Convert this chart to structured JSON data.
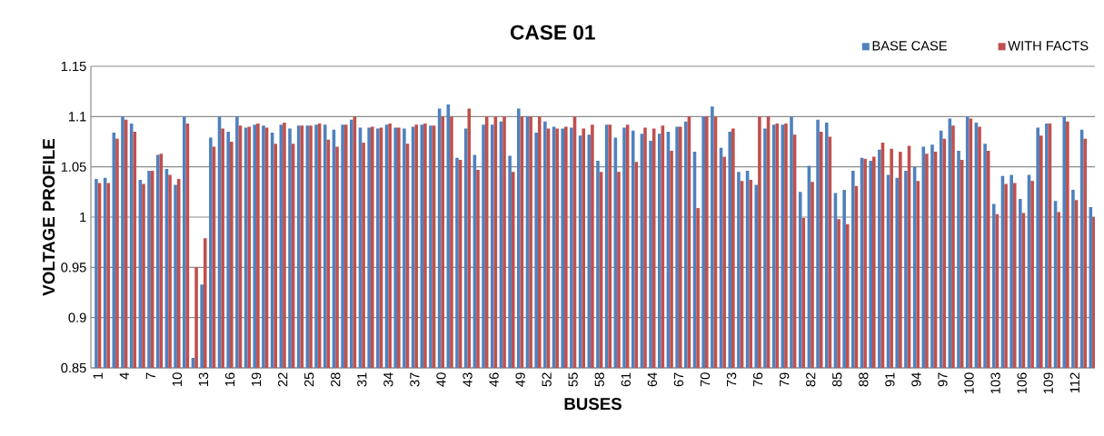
{
  "chart_data": {
    "type": "bar",
    "title": "CASE 01",
    "xlabel": "BUSES",
    "ylabel": "VOLTAGE PROFILE",
    "categories": [
      "1",
      null,
      null,
      "4",
      null,
      null,
      "7",
      null,
      null,
      "10",
      null,
      null,
      "13",
      null,
      null,
      "16",
      null,
      null,
      "19",
      null,
      null,
      "22",
      null,
      null,
      "25",
      null,
      null,
      "28",
      null,
      null,
      "31",
      null,
      null,
      "34",
      null,
      null,
      "37",
      null,
      null,
      "40",
      null,
      null,
      "43",
      null,
      null,
      "46",
      null,
      null,
      "49",
      null,
      null,
      "52",
      null,
      null,
      "55",
      null,
      null,
      "58",
      null,
      null,
      "61",
      null,
      null,
      "64",
      null,
      null,
      "67",
      null,
      null,
      "70",
      null,
      null,
      "73",
      null,
      null,
      "76",
      null,
      null,
      "79",
      null,
      null,
      "82",
      null,
      null,
      "85",
      null,
      null,
      "88",
      null,
      null,
      "91",
      null,
      null,
      "94",
      null,
      null,
      "97",
      null,
      null,
      "100",
      null,
      null,
      "103",
      null,
      null,
      "106",
      null,
      null,
      "109",
      null,
      null,
      "112",
      null,
      null
    ],
    "series": [
      {
        "name": "BASE CASE",
        "color": "#4f81bd",
        "values": [
          1.038,
          1.039,
          1.084,
          1.1,
          1.093,
          1.037,
          1.046,
          1.062,
          1.048,
          1.032,
          1.1,
          0.86,
          0.933,
          1.079,
          1.1,
          1.085,
          1.1,
          1.089,
          1.092,
          1.091,
          1.084,
          1.092,
          1.088,
          1.091,
          1.091,
          1.092,
          1.092,
          1.087,
          1.092,
          1.097,
          1.089,
          1.089,
          1.088,
          1.092,
          1.089,
          1.088,
          1.09,
          1.092,
          1.091,
          1.108,
          1.112,
          1.059,
          1.088,
          1.062,
          1.092,
          1.092,
          1.095,
          1.061,
          1.108,
          1.1,
          1.084,
          1.095,
          1.09,
          1.088,
          1.089,
          1.081,
          1.082,
          1.056,
          1.092,
          1.079,
          1.089,
          1.086,
          1.083,
          1.076,
          1.083,
          1.085,
          1.09,
          1.095,
          1.065,
          1.1,
          1.11,
          1.069,
          1.085,
          1.045,
          1.046,
          1.032,
          1.088,
          1.092,
          1.092,
          1.1,
          1.025,
          1.051,
          1.097,
          1.094,
          1.024,
          1.027,
          1.046,
          1.059,
          1.056,
          1.067,
          1.042,
          1.039,
          1.046,
          1.05,
          1.07,
          1.072,
          1.086,
          1.098,
          1.066,
          1.1,
          1.094,
          1.073,
          1.013,
          1.041,
          1.042,
          1.018,
          1.042,
          1.089,
          1.093,
          1.016,
          1.1,
          1.027,
          1.087,
          1.01
        ]
      },
      {
        "name": "WITH FACTS",
        "color": "#c0504d",
        "values": [
          1.034,
          1.034,
          1.078,
          1.097,
          1.085,
          1.033,
          1.046,
          1.063,
          1.042,
          1.038,
          1.093,
          0.95,
          0.979,
          1.07,
          1.088,
          1.075,
          1.091,
          1.09,
          1.093,
          1.089,
          1.073,
          1.094,
          1.073,
          1.091,
          1.091,
          1.093,
          1.077,
          1.07,
          1.092,
          1.1,
          1.074,
          1.09,
          1.089,
          1.093,
          1.089,
          1.073,
          1.092,
          1.093,
          1.091,
          1.1,
          1.1,
          1.057,
          1.108,
          1.047,
          1.1,
          1.1,
          1.1,
          1.045,
          1.1,
          1.1,
          1.1,
          1.088,
          1.088,
          1.09,
          1.1,
          1.088,
          1.092,
          1.045,
          1.092,
          1.045,
          1.092,
          1.055,
          1.089,
          1.088,
          1.091,
          1.066,
          1.09,
          1.1,
          1.009,
          1.1,
          1.1,
          1.06,
          1.088,
          1.036,
          1.037,
          1.1,
          1.1,
          1.093,
          1.093,
          1.082,
          0.999,
          1.035,
          1.085,
          1.08,
          0.998,
          0.993,
          1.031,
          1.058,
          1.06,
          1.074,
          1.068,
          1.065,
          1.071,
          1.036,
          1.063,
          1.065,
          1.078,
          1.091,
          1.057,
          1.098,
          1.09,
          1.066,
          1.003,
          1.033,
          1.034,
          1.004,
          1.036,
          1.081,
          1.093,
          1.005,
          1.095,
          1.017,
          1.078,
          1.0
        ]
      }
    ],
    "ylim": [
      0.85,
      1.15
    ],
    "yticks": [
      0.85,
      0.9,
      0.95,
      1,
      1.05,
      1.1,
      1.15
    ],
    "grid": "y",
    "legend": "top right"
  }
}
